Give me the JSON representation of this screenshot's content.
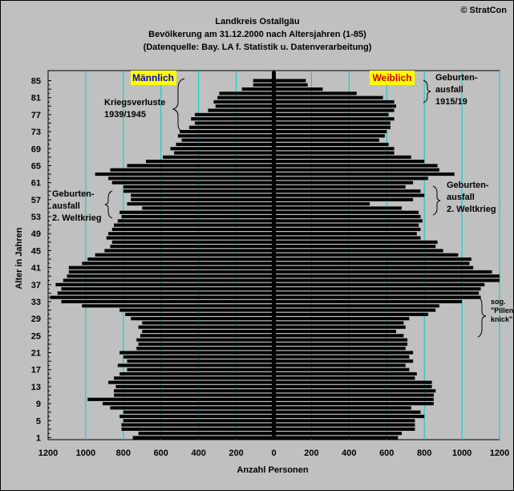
{
  "copyright": "© StratCon",
  "chart_data": {
    "type": "bar",
    "orientation": "horizontal-butterfly",
    "title": "Landkreis Ostallgäu",
    "subtitle": "Bevölkerung am 31.12.2000 nach Altersjahren (1-85)",
    "source": "(Datenquelle: Bay. LA f. Statistik u. Datenverarbeitung)",
    "xlabel": "Anzahl Personen",
    "ylabel": "Alter in Jahren",
    "xlim": [
      -1200,
      1200
    ],
    "ylim": [
      1,
      85
    ],
    "x_ticks": [
      1200,
      1000,
      800,
      600,
      400,
      200,
      0,
      200,
      400,
      600,
      800,
      1000,
      1200
    ],
    "y_ticks": [
      1,
      5,
      9,
      13,
      17,
      21,
      25,
      29,
      33,
      37,
      41,
      45,
      49,
      53,
      57,
      61,
      65,
      69,
      73,
      77,
      81,
      85
    ],
    "grid": true,
    "bar_color": "#000000",
    "grid_color": "#00cccc",
    "series": [
      {
        "name": "Männlich",
        "color": "#0000cc",
        "ages": [
          1,
          2,
          3,
          4,
          5,
          6,
          7,
          8,
          9,
          10,
          11,
          12,
          13,
          14,
          15,
          16,
          17,
          18,
          19,
          20,
          21,
          22,
          23,
          24,
          25,
          26,
          27,
          28,
          29,
          30,
          31,
          32,
          33,
          34,
          35,
          36,
          37,
          38,
          39,
          40,
          41,
          42,
          43,
          44,
          45,
          46,
          47,
          48,
          49,
          50,
          51,
          52,
          53,
          54,
          55,
          56,
          57,
          58,
          59,
          60,
          61,
          62,
          63,
          64,
          65,
          66,
          67,
          68,
          69,
          70,
          71,
          72,
          73,
          74,
          75,
          76,
          77,
          78,
          79,
          80,
          81,
          82,
          83,
          84,
          85
        ],
        "values": [
          750,
          720,
          810,
          810,
          800,
          820,
          800,
          870,
          910,
          990,
          850,
          850,
          840,
          880,
          850,
          820,
          780,
          830,
          780,
          800,
          820,
          730,
          720,
          730,
          710,
          700,
          720,
          700,
          760,
          790,
          820,
          1020,
          1130,
          1190,
          1150,
          1130,
          1160,
          1120,
          1100,
          1090,
          1090,
          1020,
          990,
          950,
          900,
          870,
          860,
          890,
          880,
          860,
          850,
          830,
          810,
          820,
          700,
          780,
          760,
          760,
          800,
          800,
          860,
          880,
          950,
          870,
          780,
          680,
          590,
          530,
          550,
          520,
          490,
          510,
          500,
          450,
          420,
          440,
          420,
          350,
          310,
          320,
          300,
          290,
          170,
          110,
          110
        ]
      },
      {
        "name": "Weiblich",
        "color": "#cc0000",
        "ages": [
          1,
          2,
          3,
          4,
          5,
          6,
          7,
          8,
          9,
          10,
          11,
          12,
          13,
          14,
          15,
          16,
          17,
          18,
          19,
          20,
          21,
          22,
          23,
          24,
          25,
          26,
          27,
          28,
          29,
          30,
          31,
          32,
          33,
          34,
          35,
          36,
          37,
          38,
          39,
          40,
          41,
          42,
          43,
          44,
          45,
          46,
          47,
          48,
          49,
          50,
          51,
          52,
          53,
          54,
          55,
          56,
          57,
          58,
          59,
          60,
          61,
          62,
          63,
          64,
          65,
          66,
          67,
          68,
          69,
          70,
          71,
          72,
          73,
          74,
          75,
          76,
          77,
          78,
          79,
          80,
          81,
          82,
          83,
          84,
          85
        ],
        "values": [
          660,
          680,
          750,
          750,
          750,
          800,
          780,
          730,
          850,
          850,
          850,
          860,
          840,
          840,
          750,
          760,
          720,
          700,
          740,
          720,
          740,
          700,
          710,
          710,
          690,
          650,
          700,
          690,
          720,
          820,
          860,
          880,
          1000,
          1100,
          1090,
          1100,
          1120,
          1200,
          1200,
          1160,
          1060,
          1040,
          1050,
          980,
          900,
          860,
          870,
          780,
          760,
          780,
          770,
          790,
          780,
          770,
          680,
          510,
          740,
          800,
          780,
          700,
          740,
          820,
          960,
          880,
          870,
          800,
          730,
          640,
          640,
          610,
          560,
          590,
          600,
          620,
          620,
          640,
          610,
          640,
          650,
          640,
          580,
          440,
          260,
          180,
          170
        ]
      }
    ],
    "annotations": [
      {
        "text": [
          "Kriegsverluste",
          "1939/1945"
        ],
        "side": "male"
      },
      {
        "text": [
          "Geburten-",
          "ausfall",
          "2. Weltkrieg"
        ],
        "side": "male"
      },
      {
        "text": [
          "Geburten-",
          "ausfall",
          "1915/19"
        ],
        "side": "female"
      },
      {
        "text": [
          "Geburten-",
          "ausfall",
          "2. Weltkrieg"
        ],
        "side": "female"
      },
      {
        "text": [
          "sog.",
          "\"Pillen-",
          "knick\""
        ],
        "side": "female"
      }
    ]
  }
}
